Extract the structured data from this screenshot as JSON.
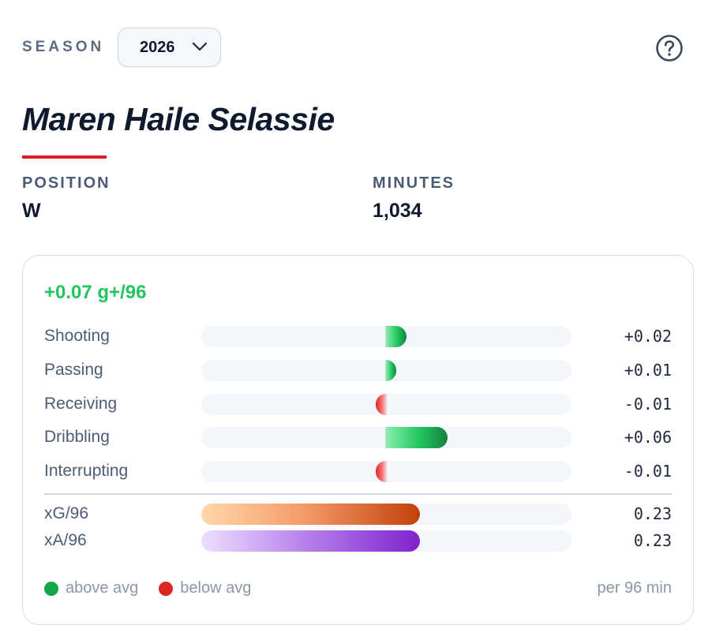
{
  "header": {
    "season_label": "SEASON",
    "season_value": "2026",
    "icons": {
      "dropdown": "chevron-down-icon",
      "help": "help-circle-icon"
    }
  },
  "player": {
    "name": "Maren Haile Selassie",
    "accent_color": "#e11d1d",
    "position_label": "POSITION",
    "position_value": "W",
    "minutes_label": "MINUTES",
    "minutes_value": "1,034"
  },
  "card": {
    "total": "+0.07 g+/96",
    "total_color": "#22c55e",
    "components": [
      {
        "label": "Shooting",
        "value": 0.02,
        "display": "+0.02"
      },
      {
        "label": "Passing",
        "value": 0.01,
        "display": "+0.01"
      },
      {
        "label": "Receiving",
        "value": -0.01,
        "display": "-0.01"
      },
      {
        "label": "Dribbling",
        "value": 0.06,
        "display": "+0.06"
      },
      {
        "label": "Interrupting",
        "value": -0.01,
        "display": "-0.01"
      }
    ],
    "component_scale_max": 0.18,
    "rates": [
      {
        "label": "xG/96",
        "value": 0.23,
        "display": "0.23",
        "fill_fraction": 0.59
      },
      {
        "label": "xA/96",
        "value": 0.23,
        "display": "0.23",
        "fill_fraction": 0.59
      }
    ],
    "legend": {
      "above": "above avg",
      "above_color": "#16a34a",
      "below": "below avg",
      "below_color": "#dc2626",
      "per": "per 96 min"
    }
  }
}
